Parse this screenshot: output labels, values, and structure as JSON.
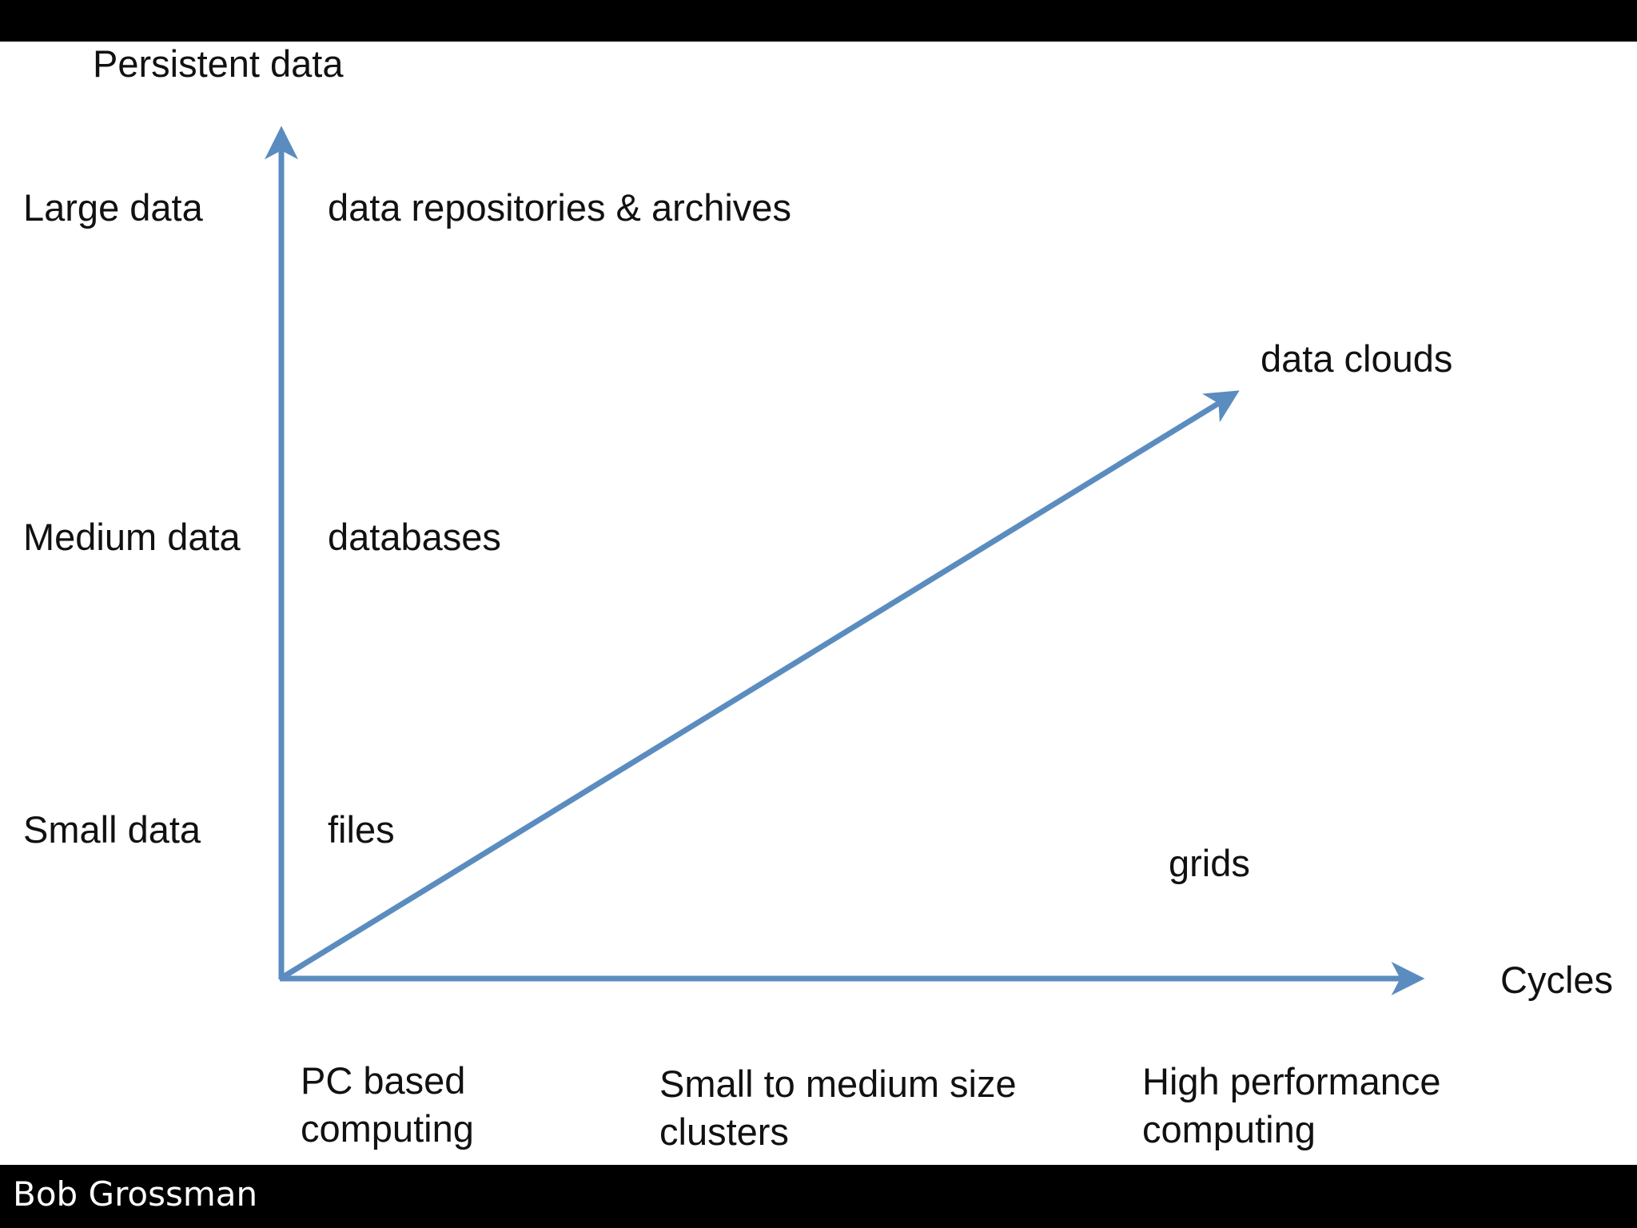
{
  "diagram": {
    "y_axis_title": "Persistent data",
    "x_axis_title": "Cycles",
    "data_levels": [
      {
        "scale": "Large data",
        "storage": "data repositories & archives"
      },
      {
        "scale": "Medium data",
        "storage": "databases"
      },
      {
        "scale": "Small data",
        "storage": "files"
      }
    ],
    "compute_levels": [
      {
        "label": "PC based\ncomputing"
      },
      {
        "label": "Small to medium size\nclusters"
      },
      {
        "label": "High performance\ncomputing"
      }
    ],
    "diagonal_label": "data clouds",
    "grids_label": "grids",
    "arrow_color": "#5b8cc0"
  },
  "footer": {
    "author": "Bob Grossman"
  }
}
